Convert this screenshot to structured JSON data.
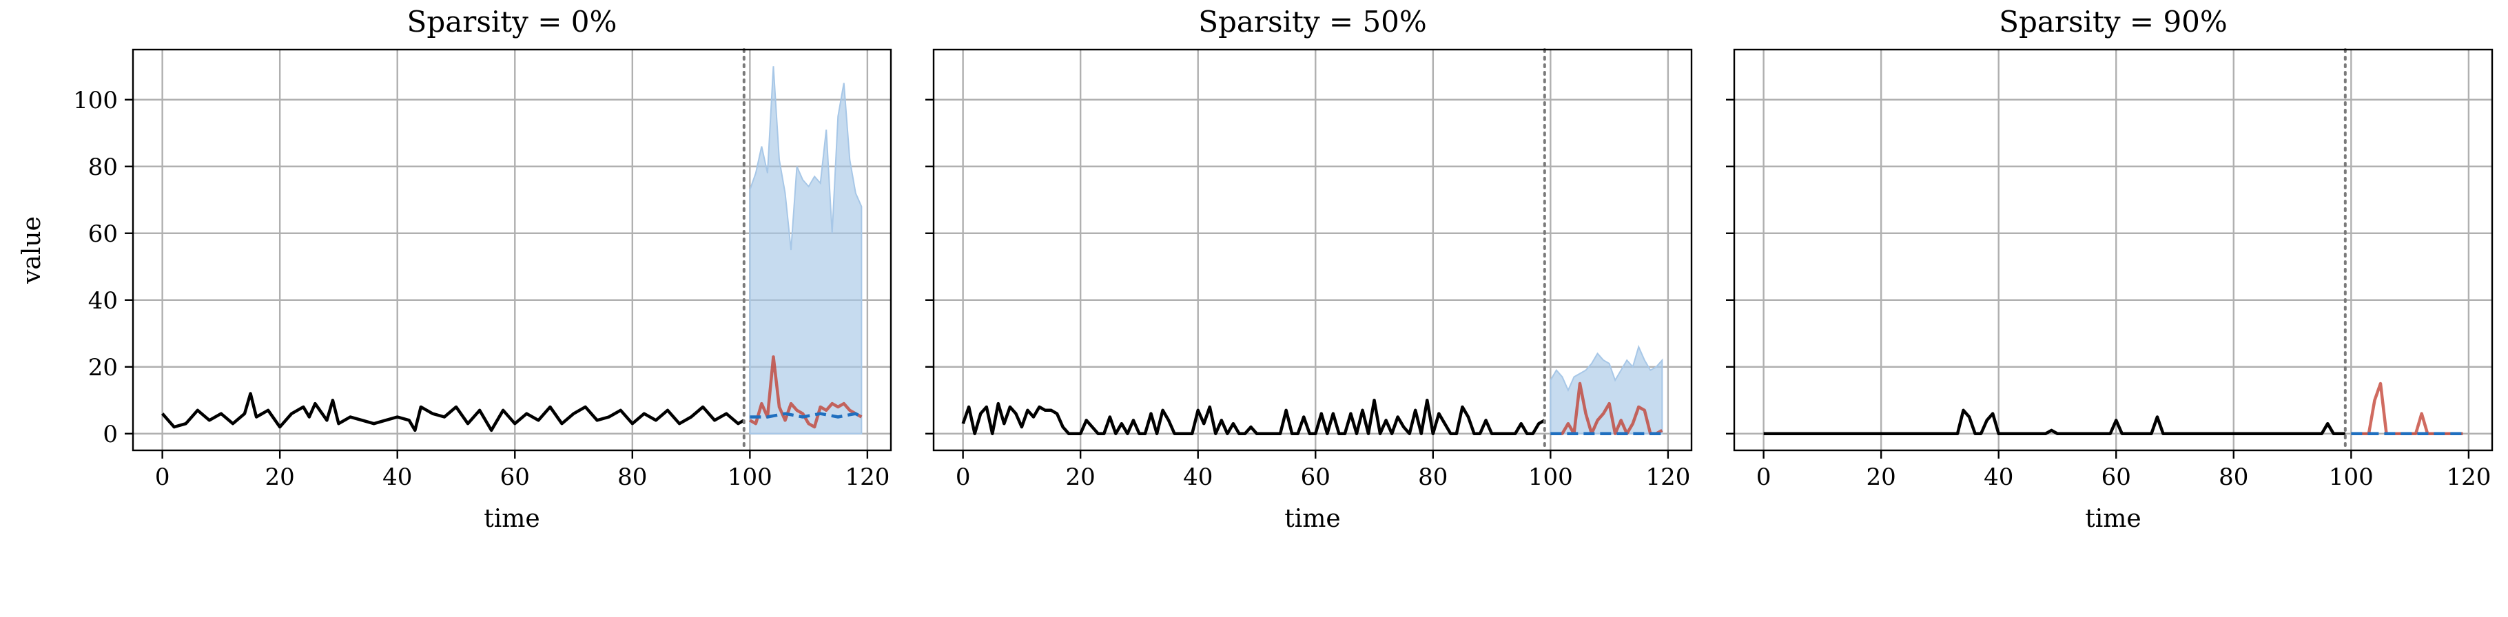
{
  "chart_data": [
    {
      "type": "line",
      "title": "Sparsity = 0%",
      "xlabel": "time",
      "ylabel": "value",
      "xlim": [
        -5,
        124
      ],
      "ylim": [
        -5,
        115
      ],
      "xticks": [
        0,
        20,
        40,
        60,
        80,
        100,
        120
      ],
      "yticks": [
        0,
        20,
        40,
        60,
        80,
        100
      ],
      "grid": true,
      "forecast_start": 99,
      "series": [
        {
          "role": "history",
          "color": "#000000",
          "x": [
            0,
            2,
            4,
            6,
            8,
            10,
            12,
            14,
            15,
            16,
            18,
            20,
            22,
            24,
            25,
            26,
            28,
            29,
            30,
            32,
            34,
            36,
            38,
            40,
            42,
            43,
            44,
            46,
            48,
            50,
            52,
            54,
            56,
            58,
            60,
            62,
            64,
            66,
            68,
            70,
            72,
            74,
            76,
            78,
            80,
            82,
            84,
            86,
            88,
            90,
            92,
            94,
            96,
            98,
            99
          ],
          "y": [
            6,
            2,
            3,
            7,
            4,
            6,
            3,
            6,
            12,
            5,
            7,
            2,
            6,
            8,
            5,
            9,
            4,
            10,
            3,
            5,
            4,
            3,
            4,
            5,
            4,
            1,
            8,
            6,
            5,
            8,
            3,
            7,
            1,
            7,
            3,
            6,
            4,
            8,
            3,
            6,
            8,
            4,
            5,
            7,
            3,
            6,
            4,
            7,
            3,
            5,
            8,
            4,
            6,
            3,
            4
          ]
        },
        {
          "role": "actual",
          "color": "#c0392b",
          "x": [
            100,
            101,
            102,
            103,
            104,
            105,
            106,
            107,
            108,
            109,
            110,
            111,
            112,
            113,
            114,
            115,
            116,
            117,
            118,
            119
          ],
          "y": [
            4,
            3,
            9,
            5,
            23,
            8,
            4,
            9,
            7,
            6,
            3,
            2,
            8,
            7,
            9,
            8,
            9,
            7,
            6,
            5
          ]
        },
        {
          "role": "forecast-median",
          "color": "#1f6fbf",
          "x": [
            100,
            103,
            106,
            109,
            112,
            115,
            118,
            119
          ],
          "y": [
            5,
            5,
            6,
            5,
            6,
            5,
            6,
            5
          ]
        }
      ],
      "interval": {
        "color": "#a7c7e7",
        "x": [
          100,
          101,
          102,
          103,
          104,
          105,
          106,
          107,
          108,
          109,
          110,
          111,
          112,
          113,
          114,
          115,
          116,
          117,
          118,
          119
        ],
        "lower": [
          0,
          0,
          0,
          0,
          0,
          0,
          0,
          0,
          0,
          0,
          0,
          0,
          0,
          0,
          0,
          0,
          0,
          0,
          0,
          0
        ],
        "upper": [
          73,
          78,
          86,
          78,
          110,
          82,
          72,
          55,
          80,
          76,
          74,
          77,
          75,
          91,
          60,
          95,
          105,
          82,
          72,
          68
        ]
      }
    },
    {
      "type": "line",
      "title": "Sparsity = 50%",
      "xlabel": "time",
      "ylabel": "",
      "xlim": [
        -5,
        124
      ],
      "ylim": [
        -5,
        115
      ],
      "xticks": [
        0,
        20,
        40,
        60,
        80,
        100,
        120
      ],
      "yticks": [
        0,
        20,
        40,
        60,
        80,
        100
      ],
      "grid": true,
      "forecast_start": 99,
      "series": [
        {
          "role": "history",
          "color": "#000000",
          "x": [
            0,
            1,
            2,
            3,
            4,
            5,
            6,
            7,
            8,
            9,
            10,
            11,
            12,
            13,
            14,
            15,
            16,
            17,
            18,
            19,
            20,
            21,
            22,
            23,
            24,
            25,
            26,
            27,
            28,
            29,
            30,
            31,
            32,
            33,
            34,
            35,
            36,
            37,
            38,
            39,
            40,
            41,
            42,
            43,
            44,
            45,
            46,
            47,
            48,
            49,
            50,
            51,
            52,
            53,
            54,
            55,
            56,
            57,
            58,
            59,
            60,
            61,
            62,
            63,
            64,
            65,
            66,
            67,
            68,
            69,
            70,
            71,
            72,
            73,
            74,
            75,
            76,
            77,
            78,
            79,
            80,
            81,
            82,
            83,
            84,
            85,
            86,
            87,
            88,
            89,
            90,
            91,
            92,
            93,
            94,
            95,
            96,
            97,
            98,
            99
          ],
          "y": [
            3,
            8,
            0,
            6,
            8,
            0,
            9,
            3,
            8,
            6,
            2,
            7,
            5,
            8,
            7,
            7,
            6,
            2,
            0,
            0,
            0,
            4,
            2,
            0,
            0,
            5,
            0,
            3,
            0,
            4,
            0,
            0,
            6,
            0,
            7,
            4,
            0,
            0,
            0,
            0,
            7,
            3,
            8,
            0,
            4,
            0,
            3,
            0,
            0,
            2,
            0,
            0,
            0,
            0,
            0,
            7,
            0,
            0,
            5,
            0,
            0,
            6,
            0,
            6,
            0,
            0,
            6,
            0,
            7,
            0,
            10,
            0,
            4,
            0,
            5,
            2,
            0,
            7,
            0,
            10,
            0,
            6,
            3,
            0,
            0,
            8,
            5,
            0,
            0,
            4,
            0,
            0,
            0,
            0,
            0,
            3,
            0,
            0,
            3,
            4
          ]
        },
        {
          "role": "actual",
          "color": "#c0392b",
          "x": [
            100,
            101,
            102,
            103,
            104,
            105,
            106,
            107,
            108,
            109,
            110,
            111,
            112,
            113,
            114,
            115,
            116,
            117,
            118,
            119
          ],
          "y": [
            0,
            0,
            0,
            3,
            0,
            15,
            6,
            0,
            4,
            6,
            9,
            0,
            4,
            0,
            3,
            8,
            7,
            0,
            0,
            1
          ]
        },
        {
          "role": "forecast-median",
          "color": "#1f6fbf",
          "x": [
            100,
            105,
            110,
            115,
            119
          ],
          "y": [
            0,
            0,
            0,
            0,
            0
          ]
        }
      ],
      "interval": {
        "color": "#a7c7e7",
        "x": [
          100,
          101,
          102,
          103,
          104,
          105,
          106,
          107,
          108,
          109,
          110,
          111,
          112,
          113,
          114,
          115,
          116,
          117,
          118,
          119
        ],
        "lower": [
          0,
          0,
          0,
          0,
          0,
          0,
          0,
          0,
          0,
          0,
          0,
          0,
          0,
          0,
          0,
          0,
          0,
          0,
          0,
          0
        ],
        "upper": [
          16,
          19,
          17,
          13,
          17,
          18,
          19,
          21,
          24,
          22,
          21,
          16,
          19,
          22,
          20,
          26,
          22,
          19,
          20,
          22
        ]
      }
    },
    {
      "type": "line",
      "title": "Sparsity = 90%",
      "xlabel": "time",
      "ylabel": "",
      "xlim": [
        -5,
        124
      ],
      "ylim": [
        -5,
        115
      ],
      "xticks": [
        0,
        20,
        40,
        60,
        80,
        100,
        120
      ],
      "yticks": [
        0,
        20,
        40,
        60,
        80,
        100
      ],
      "grid": true,
      "forecast_start": 99,
      "series": [
        {
          "role": "history",
          "color": "#000000",
          "x": [
            0,
            33,
            34,
            35,
            36,
            37,
            38,
            39,
            40,
            41,
            48,
            49,
            50,
            59,
            60,
            61,
            66,
            67,
            68,
            95,
            96,
            97,
            98,
            99
          ],
          "y": [
            0,
            0,
            7,
            5,
            0,
            0,
            4,
            6,
            0,
            0,
            0,
            1,
            0,
            0,
            4,
            0,
            0,
            5,
            0,
            0,
            3,
            0,
            0,
            0
          ]
        },
        {
          "role": "actual",
          "color": "#c0392b",
          "x": [
            100,
            103,
            104,
            105,
            106,
            110,
            111,
            112,
            113,
            119
          ],
          "y": [
            0,
            0,
            10,
            15,
            0,
            0,
            0,
            6,
            0,
            0
          ]
        },
        {
          "role": "forecast-median",
          "color": "#1f6fbf",
          "x": [
            100,
            105,
            110,
            115,
            119
          ],
          "y": [
            0,
            0,
            0,
            0,
            0
          ]
        }
      ],
      "interval": {
        "color": "#a7c7e7",
        "x": [
          100,
          119
        ],
        "lower": [
          0,
          0
        ],
        "upper": [
          0,
          0
        ]
      }
    }
  ]
}
